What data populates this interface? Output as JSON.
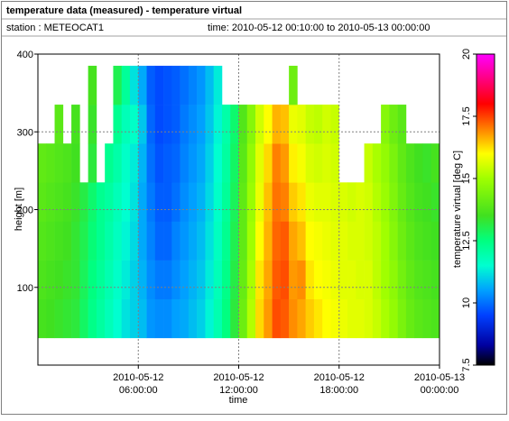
{
  "header": {
    "title": "temperature data (measured) - temperature virtual",
    "station": "station : METEOCAT1",
    "time_range": "time: 2010-05-12 00:10:00 to 2010-05-13 00:00:00"
  },
  "chart_data": {
    "type": "heatmap",
    "xlabel": "time",
    "ylabel": "height [m]",
    "zlabel": "temperature virtual [deg C]",
    "xlim": [
      0,
      24
    ],
    "xticks": [
      {
        "value": 6,
        "label": [
          "2010-05-12",
          "06:00:00"
        ]
      },
      {
        "value": 12,
        "label": [
          "2010-05-12",
          "12:00:00"
        ]
      },
      {
        "value": 18,
        "label": [
          "2010-05-12",
          "18:00:00"
        ]
      },
      {
        "value": 24,
        "label": [
          "2010-05-13",
          "00:00:00"
        ]
      }
    ],
    "ylim": [
      0,
      400
    ],
    "yticks": [
      100,
      200,
      300,
      400
    ],
    "zlim": [
      7.5,
      20
    ],
    "zticks": [
      7.5,
      10,
      12.5,
      15,
      17.5,
      20
    ],
    "grid": true,
    "colormap": [
      [
        7.5,
        "#000000"
      ],
      [
        8.3,
        "#0000a0"
      ],
      [
        9.5,
        "#0040ff"
      ],
      [
        10.5,
        "#00a0ff"
      ],
      [
        11.5,
        "#00ffd0"
      ],
      [
        12.5,
        "#00ff80"
      ],
      [
        13.5,
        "#40e020"
      ],
      [
        15,
        "#a0ff00"
      ],
      [
        16,
        "#ffff00"
      ],
      [
        17,
        "#ff8000"
      ],
      [
        18,
        "#ff0000"
      ],
      [
        19,
        "#ff0080"
      ],
      [
        20,
        "#ff00ff"
      ]
    ],
    "x_bins": [
      0,
      0.5,
      1,
      1.5,
      2,
      2.5,
      3,
      3.5,
      4,
      4.5,
      5,
      5.5,
      6,
      6.5,
      7,
      7.5,
      8,
      8.5,
      9,
      9.5,
      10,
      10.5,
      11,
      11.5,
      12,
      12.5,
      13,
      13.5,
      14,
      14.5,
      15,
      15.5,
      16,
      16.5,
      17,
      17.5,
      18,
      18.5,
      19,
      19.5,
      20,
      20.5,
      21,
      21.5,
      22,
      22.5,
      23,
      23.5,
      24
    ],
    "y_bins": [
      35,
      85,
      135,
      185,
      235,
      285,
      335,
      385
    ],
    "values": [
      [
        13.6,
        13.7,
        13.8,
        13.9,
        14.0,
        null,
        null
      ],
      [
        13.5,
        13.6,
        13.7,
        13.8,
        13.9,
        null,
        null
      ],
      [
        13.4,
        13.5,
        13.6,
        13.7,
        13.8,
        13.9,
        null
      ],
      [
        13.3,
        13.4,
        13.5,
        13.6,
        13.7,
        null,
        null
      ],
      [
        13.2,
        13.3,
        13.3,
        13.4,
        13.5,
        13.6,
        null
      ],
      [
        12.8,
        12.9,
        13.0,
        13.1,
        null,
        null,
        null
      ],
      [
        12.4,
        12.5,
        12.6,
        12.7,
        13.2,
        13.4,
        13.6
      ],
      [
        12.1,
        12.2,
        12.3,
        12.3,
        null,
        null,
        null
      ],
      [
        11.8,
        11.9,
        12.0,
        12.1,
        12.3,
        null,
        null
      ],
      [
        11.5,
        11.6,
        11.7,
        11.8,
        12.0,
        12.3,
        13.0
      ],
      [
        11.2,
        11.3,
        11.4,
        11.5,
        11.6,
        11.8,
        12.2
      ],
      [
        11.0,
        11.0,
        11.1,
        11.2,
        11.3,
        11.6,
        11.2
      ],
      [
        10.8,
        10.7,
        10.6,
        10.6,
        10.7,
        10.9,
        10.6
      ],
      [
        10.4,
        10.3,
        10.2,
        10.1,
        10.0,
        9.9,
        9.8
      ],
      [
        10.3,
        10.1,
        9.9,
        9.8,
        9.7,
        9.6,
        9.6
      ],
      [
        10.3,
        10.1,
        9.9,
        9.8,
        9.8,
        9.7,
        9.7
      ],
      [
        10.5,
        10.3,
        10.2,
        10.0,
        9.9,
        9.8,
        9.8
      ],
      [
        10.6,
        10.5,
        10.4,
        10.3,
        10.2,
        10.1,
        10.0
      ],
      [
        10.8,
        10.7,
        10.6,
        10.5,
        10.4,
        10.3,
        10.2
      ],
      [
        11.0,
        10.9,
        10.8,
        10.7,
        10.6,
        10.5,
        10.4
      ],
      [
        11.4,
        11.3,
        11.2,
        11.1,
        11.0,
        10.9,
        10.8
      ],
      [
        11.9,
        11.8,
        11.7,
        11.6,
        11.5,
        11.4,
        11.3
      ],
      [
        12.5,
        12.4,
        12.3,
        12.2,
        12.1,
        12.0,
        null
      ],
      [
        13.2,
        13.1,
        13.0,
        12.9,
        12.8,
        12.7,
        null
      ],
      [
        14.2,
        14.1,
        14.0,
        14.0,
        13.9,
        13.8,
        null
      ],
      [
        15.2,
        15.1,
        15.0,
        14.9,
        14.8,
        14.6,
        null
      ],
      [
        16.3,
        16.2,
        16.0,
        15.8,
        15.7,
        15.5,
        null
      ],
      [
        16.8,
        16.7,
        16.6,
        16.5,
        16.3,
        16.0,
        null
      ],
      [
        17.4,
        17.3,
        17.2,
        17.1,
        17.0,
        16.6,
        null
      ],
      [
        17.3,
        17.4,
        17.3,
        17.0,
        16.8,
        16.5,
        null
      ],
      [
        16.9,
        16.8,
        16.7,
        16.4,
        16.1,
        15.8,
        14.2
      ],
      [
        16.7,
        16.9,
        16.5,
        16.2,
        15.9,
        15.7,
        null
      ],
      [
        16.4,
        16.2,
        16.0,
        15.8,
        15.6,
        15.4,
        null
      ],
      [
        16.2,
        16.0,
        15.9,
        15.7,
        15.5,
        15.3,
        null
      ],
      [
        16.0,
        15.9,
        15.8,
        15.7,
        15.6,
        15.5,
        null
      ],
      [
        15.9,
        15.8,
        15.7,
        15.6,
        15.5,
        15.4,
        null
      ],
      [
        15.8,
        15.7,
        15.7,
        15.6,
        null,
        null,
        null
      ],
      [
        15.7,
        15.7,
        15.6,
        15.5,
        null,
        null,
        null
      ],
      [
        15.7,
        15.6,
        15.6,
        15.6,
        null,
        null,
        null
      ],
      [
        15.6,
        15.6,
        15.5,
        15.5,
        15.4,
        null,
        null
      ],
      [
        15.4,
        15.3,
        15.3,
        15.2,
        15.1,
        null,
        null
      ],
      [
        15.1,
        15.0,
        15.0,
        14.9,
        14.8,
        14.6,
        null
      ],
      [
        14.8,
        14.7,
        14.6,
        14.5,
        14.4,
        14.2,
        null
      ],
      [
        14.4,
        14.3,
        14.2,
        14.1,
        14.0,
        13.9,
        null
      ],
      [
        14.1,
        14.0,
        13.9,
        13.8,
        13.7,
        null,
        null
      ],
      [
        13.9,
        13.8,
        13.7,
        13.6,
        13.5,
        null,
        null
      ],
      [
        13.8,
        13.7,
        13.6,
        13.5,
        13.4,
        null,
        null
      ],
      [
        13.7,
        13.6,
        13.5,
        13.4,
        13.6,
        null,
        null
      ]
    ]
  }
}
